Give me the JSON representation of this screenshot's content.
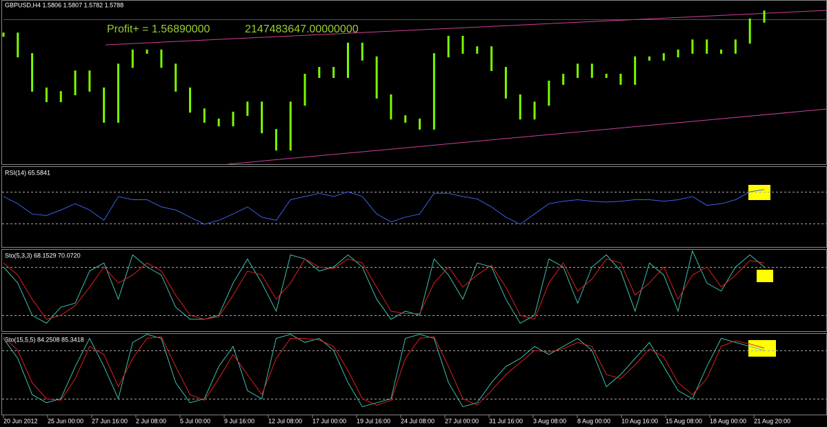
{
  "window": {
    "header": "GBPUSD,H4  1.5806 1.5807 1.5782 1.5788"
  },
  "time_axis": [
    "20 Jun 2012",
    "25 Jun 00:00",
    "27 Jun 16:00",
    "2 Jul 08:00",
    "5 Jul 00:00",
    "9 Jul 16:00",
    "12 Jul 08:00",
    "17 Jul 00:00",
    "19 Jul 16:00",
    "24 Jul 08:00",
    "27 Jul 00:00",
    "31 Jul 16:00",
    "3 Aug 08:00",
    "8 Aug 00:00",
    "10 Aug 16:00",
    "15 Aug 08:00",
    "18 Aug 00:00",
    "21 Aug 20:00"
  ],
  "chart_data": [
    {
      "type": "ohlc",
      "annotations": [
        "Profit+ = 1.56890000",
        "2147483647.00000000"
      ],
      "color": "#7cfc00",
      "ylim": [
        1.54,
        1.582
      ],
      "values": [
        1.5747,
        1.569,
        1.5595,
        1.5566,
        1.5585,
        1.5642,
        1.5595,
        1.5509,
        1.5661,
        1.57,
        1.57,
        1.5661,
        1.5595,
        1.5537,
        1.5509,
        1.5499,
        1.5528,
        1.5556,
        1.548,
        1.5432,
        1.5556,
        1.5633,
        1.5652,
        1.5633,
        1.5719,
        1.5681,
        1.5576,
        1.5518,
        1.5509,
        1.549,
        1.569,
        1.5738,
        1.57,
        1.5709,
        1.5652,
        1.5576,
        1.5518,
        1.5556,
        1.5614,
        1.5633,
        1.5661,
        1.5633,
        1.5633,
        1.5614,
        1.5681,
        1.5681,
        1.569,
        1.57,
        1.5728,
        1.57,
        1.57,
        1.5728,
        1.5786,
        1.5808
      ]
    },
    {
      "type": "line",
      "title": "RSI(14) 65.5841",
      "ylim": [
        0,
        100
      ],
      "levels": [
        30,
        70
      ],
      "series": [
        {
          "color": "#3a62e8",
          "values": [
            64,
            55,
            42,
            40,
            47,
            55,
            47,
            34,
            64,
            60,
            60,
            51,
            47,
            38,
            29,
            34,
            42,
            51,
            38,
            34,
            60,
            64,
            68,
            64,
            70,
            64,
            42,
            32,
            38,
            42,
            68,
            68,
            64,
            61,
            51,
            38,
            29,
            42,
            55,
            58,
            60,
            58,
            57,
            58,
            60,
            60,
            58,
            60,
            64,
            53,
            55,
            60,
            70,
            73
          ]
        }
      ]
    },
    {
      "type": "line",
      "title": "Sto(5,3,3) 68.1529 70.0720",
      "ylim": [
        0,
        100
      ],
      "levels": [
        20,
        80
      ],
      "series": [
        {
          "color": "#40c0b0",
          "values": [
            80,
            60,
            20,
            10,
            30,
            35,
            75,
            85,
            40,
            95,
            80,
            70,
            30,
            15,
            15,
            20,
            60,
            90,
            60,
            25,
            95,
            90,
            75,
            80,
            95,
            80,
            40,
            15,
            25,
            20,
            90,
            70,
            40,
            85,
            80,
            40,
            10,
            20,
            90,
            80,
            35,
            80,
            95,
            75,
            25,
            85,
            70,
            25,
            100,
            60,
            50,
            80,
            95,
            80
          ]
        },
        {
          "color": "#e02020",
          "values": [
            85,
            70,
            40,
            15,
            20,
            32,
            55,
            80,
            60,
            70,
            85,
            75,
            45,
            20,
            15,
            18,
            45,
            75,
            70,
            40,
            60,
            90,
            80,
            78,
            90,
            85,
            55,
            25,
            22,
            22,
            60,
            80,
            55,
            70,
            82,
            55,
            20,
            15,
            60,
            85,
            50,
            65,
            90,
            85,
            45,
            60,
            80,
            40,
            70,
            80,
            55,
            70,
            88,
            85
          ]
        }
      ]
    },
    {
      "type": "line",
      "title": "Sto(15,5,5) 84.2508 85.3418",
      "ylim": [
        0,
        100
      ],
      "levels": [
        20,
        80
      ],
      "series": [
        {
          "color": "#40c0b0",
          "values": [
            95,
            70,
            25,
            15,
            20,
            60,
            95,
            60,
            20,
            90,
            100,
            95,
            40,
            15,
            20,
            60,
            85,
            30,
            20,
            95,
            100,
            90,
            95,
            80,
            40,
            10,
            15,
            20,
            95,
            100,
            95,
            40,
            10,
            15,
            40,
            60,
            70,
            85,
            75,
            85,
            95,
            80,
            35,
            50,
            70,
            90,
            60,
            30,
            20,
            60,
            95,
            90,
            85,
            80
          ]
        },
        {
          "color": "#e02020",
          "values": [
            97,
            80,
            40,
            20,
            18,
            45,
            85,
            75,
            35,
            70,
            95,
            97,
            60,
            25,
            18,
            45,
            75,
            50,
            25,
            70,
            95,
            95,
            93,
            85,
            55,
            20,
            12,
            18,
            70,
            95,
            97,
            60,
            20,
            12,
            30,
            50,
            65,
            80,
            78,
            82,
            90,
            85,
            50,
            45,
            62,
            82,
            72,
            40,
            25,
            45,
            85,
            92,
            88,
            83
          ]
        }
      ]
    }
  ]
}
